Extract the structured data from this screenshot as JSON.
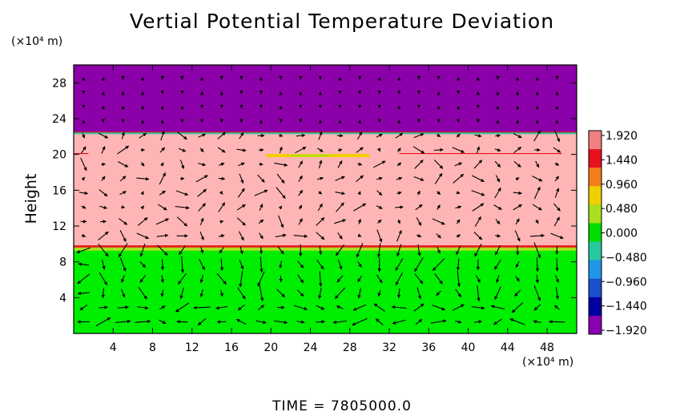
{
  "chart_data": {
    "type": "heatmap",
    "title": "Vertial Potential Temperature Deviation",
    "ylabel": "Height",
    "x_unit": "(×10⁴ m)",
    "y_unit": "(×10⁴ m)",
    "footer": "TIME  =  7805000.0",
    "xlim": [
      0,
      51
    ],
    "ylim": [
      0,
      30
    ],
    "x_ticks": [
      4,
      8,
      12,
      16,
      20,
      24,
      28,
      32,
      36,
      40,
      44,
      48
    ],
    "y_ticks": [
      4,
      8,
      12,
      16,
      20,
      24,
      28
    ],
    "colorbar": {
      "levels": [
        "1.920",
        "1.440",
        "0.960",
        "0.480",
        "0.000",
        "−0.480",
        "−0.960",
        "−1.440",
        "−1.920"
      ],
      "colors": [
        "#f08080",
        "#e8101e",
        "#f27e1b",
        "#f0d000",
        "#a8e020",
        "#00dd00",
        "#28c8a0",
        "#2196e6",
        "#1a50cc",
        "#0000a0",
        "#8800b0"
      ]
    },
    "layers": [
      {
        "name": "lower",
        "y_range": [
          0,
          9.6
        ],
        "value": 0.0,
        "color": "#00ee00"
      },
      {
        "name": "middle",
        "y_range": [
          9.6,
          22.5
        ],
        "value": 1.92,
        "color": "#ffb5b5"
      },
      {
        "name": "upper",
        "y_range": [
          22.5,
          30
        ],
        "value": -1.92,
        "color": "#8b00a8"
      }
    ],
    "grid": false,
    "overlay": "wind vector arrows"
  }
}
